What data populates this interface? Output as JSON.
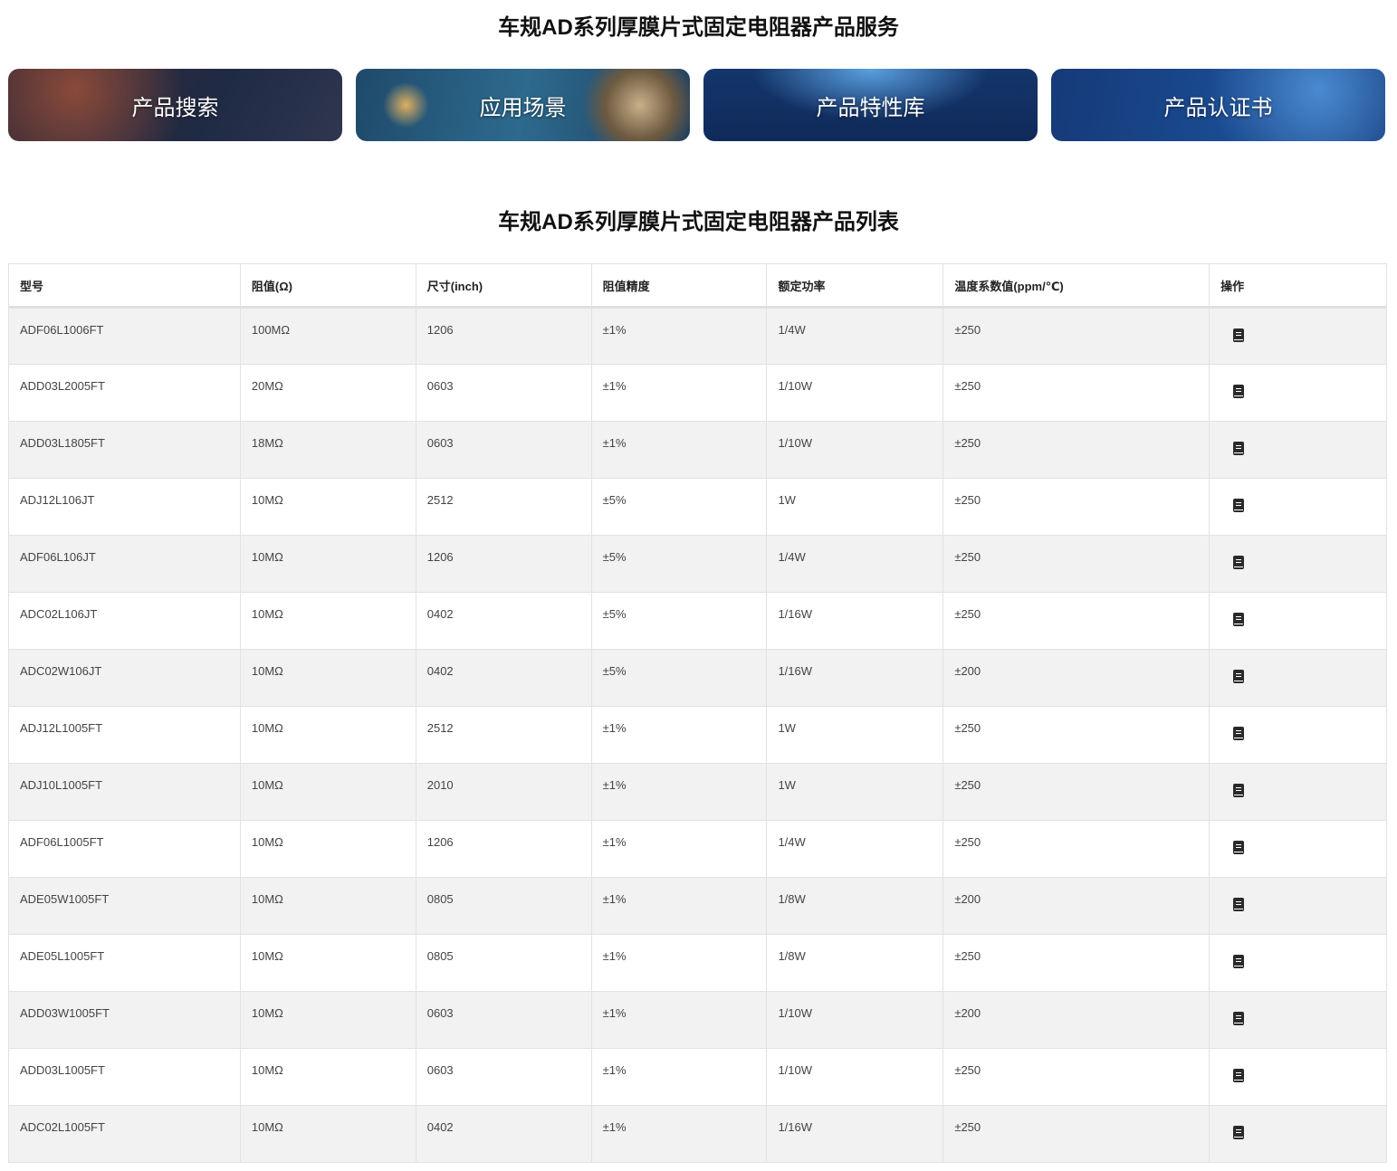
{
  "service_title": "车规AD系列厚膜片式固定电阻器产品服务",
  "banners": [
    "产品搜索",
    "应用场景",
    "产品特性库",
    "产品认证书"
  ],
  "list_title": "车规AD系列厚膜片式固定电阻器产品列表",
  "columns": [
    "型号",
    "阻值(Ω)",
    "尺寸(inch)",
    "阻值精度",
    "额定功率",
    "温度系数值(ppm/℃)",
    "操作"
  ],
  "action_icon": "document-icon",
  "rows": [
    [
      "ADF06L1006FT",
      "100MΩ",
      "1206",
      "±1%",
      "1/4W",
      "±250"
    ],
    [
      "ADD03L2005FT",
      "20MΩ",
      "0603",
      "±1%",
      "1/10W",
      "±250"
    ],
    [
      "ADD03L1805FT",
      "18MΩ",
      "0603",
      "±1%",
      "1/10W",
      "±250"
    ],
    [
      "ADJ12L106JT",
      "10MΩ",
      "2512",
      "±5%",
      "1W",
      "±250"
    ],
    [
      "ADF06L106JT",
      "10MΩ",
      "1206",
      "±5%",
      "1/4W",
      "±250"
    ],
    [
      "ADC02L106JT",
      "10MΩ",
      "0402",
      "±5%",
      "1/16W",
      "±250"
    ],
    [
      "ADC02W106JT",
      "10MΩ",
      "0402",
      "±5%",
      "1/16W",
      "±200"
    ],
    [
      "ADJ12L1005FT",
      "10MΩ",
      "2512",
      "±1%",
      "1W",
      "±250"
    ],
    [
      "ADJ10L1005FT",
      "10MΩ",
      "2010",
      "±1%",
      "1W",
      "±250"
    ],
    [
      "ADF06L1005FT",
      "10MΩ",
      "1206",
      "±1%",
      "1/4W",
      "±250"
    ],
    [
      "ADE05W1005FT",
      "10MΩ",
      "0805",
      "±1%",
      "1/8W",
      "±200"
    ],
    [
      "ADE05L1005FT",
      "10MΩ",
      "0805",
      "±1%",
      "1/8W",
      "±250"
    ],
    [
      "ADD03W1005FT",
      "10MΩ",
      "0603",
      "±1%",
      "1/10W",
      "±200"
    ],
    [
      "ADD03L1005FT",
      "10MΩ",
      "0603",
      "±1%",
      "1/10W",
      "±250"
    ],
    [
      "ADC02L1005FT",
      "10MΩ",
      "0402",
      "±1%",
      "1/16W",
      "±250"
    ]
  ]
}
